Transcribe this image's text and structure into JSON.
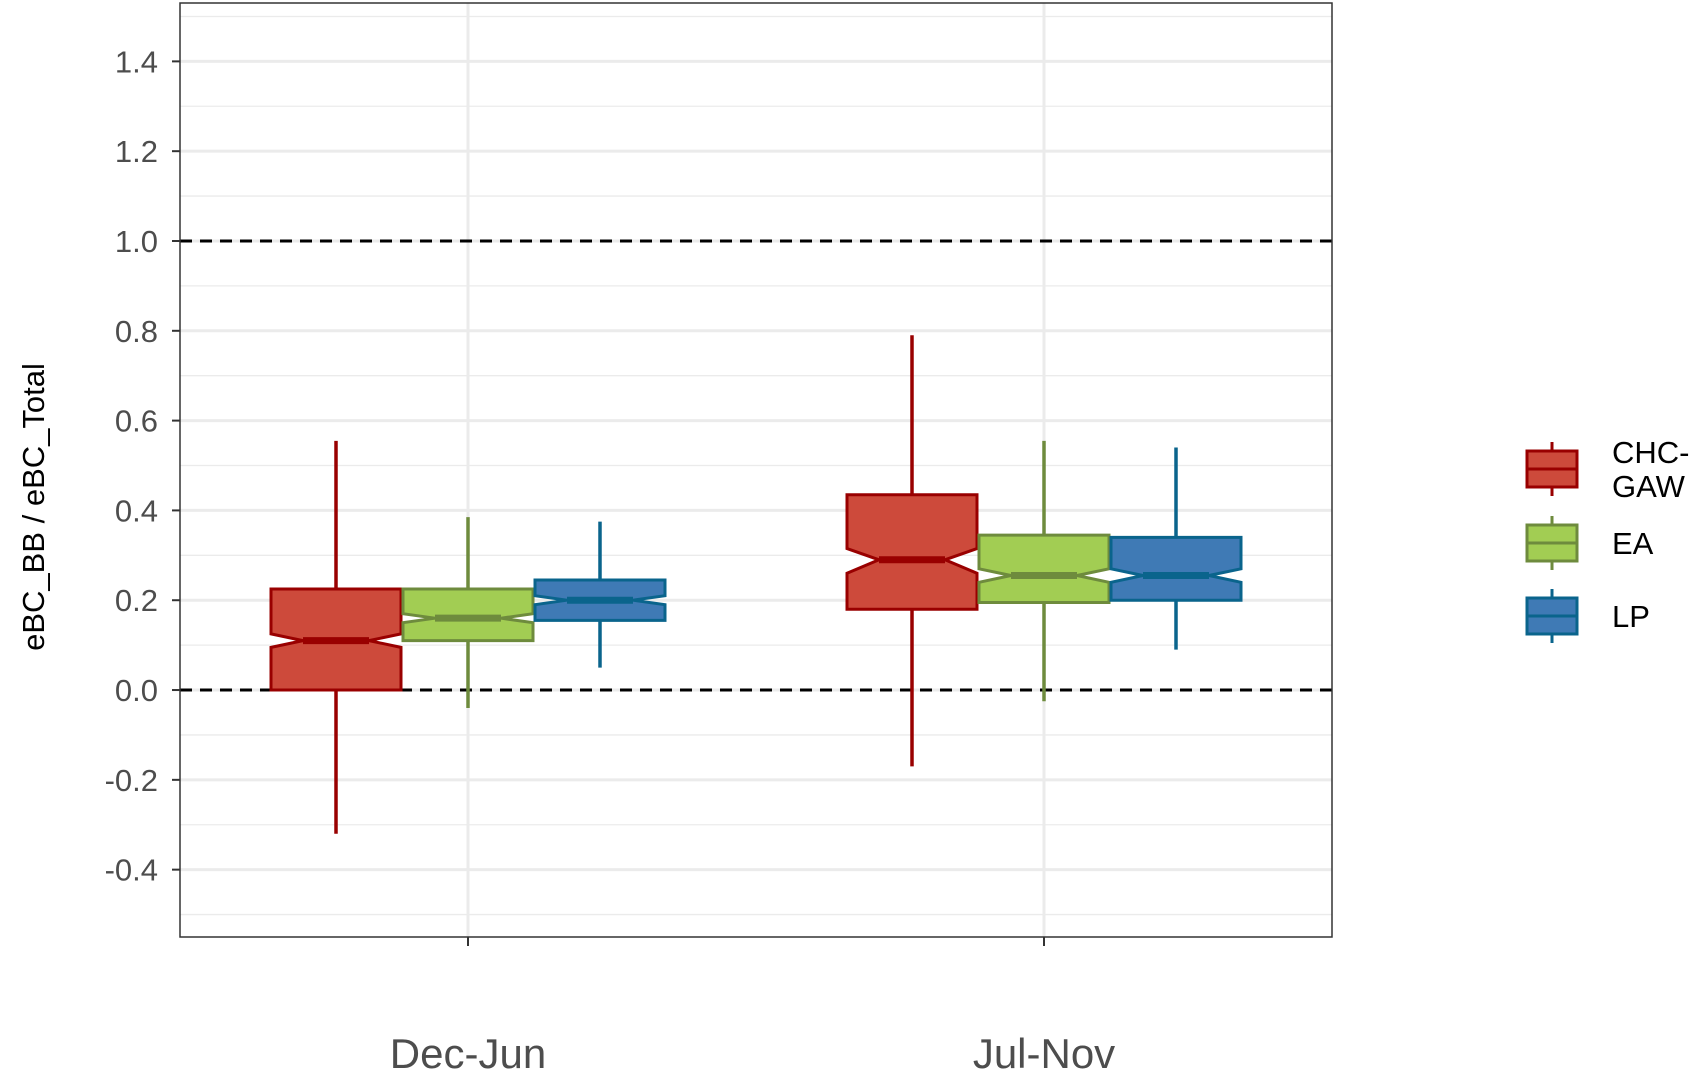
{
  "chart_data": {
    "type": "boxplot",
    "notched": true,
    "ylabel": "eBC_BB / eBC_Total",
    "xlabel": "",
    "ylim": [
      -0.55,
      1.53
    ],
    "y_ticks": [
      -0.4,
      -0.2,
      0.0,
      0.2,
      0.4,
      0.6,
      0.8,
      1.0,
      1.2,
      1.4
    ],
    "y_tick_labels": [
      "-0.4",
      "-0.2",
      "0.0",
      "0.2",
      "0.4",
      "0.6",
      "0.8",
      "1.0",
      "1.2",
      "1.4"
    ],
    "categories": [
      "Dec-Jun",
      "Jul-Nov"
    ],
    "reference_lines": [
      0.0,
      1.0
    ],
    "grid": true,
    "legend_position": "right",
    "series": [
      {
        "name": "CHC-GAW",
        "legend_lines": [
          "CHC-",
          "GAW"
        ],
        "fill": "#CD4A3B",
        "stroke": "#990000",
        "boxes": [
          {
            "whisker_low": -0.32,
            "q1": 0.0,
            "notch_low": 0.095,
            "median": 0.11,
            "notch_high": 0.125,
            "q3": 0.225,
            "whisker_high": 0.555
          },
          {
            "whisker_low": -0.17,
            "q1": 0.18,
            "notch_low": 0.26,
            "median": 0.29,
            "notch_high": 0.315,
            "q3": 0.435,
            "whisker_high": 0.79
          }
        ]
      },
      {
        "name": "EA",
        "legend_lines": [
          "EA"
        ],
        "fill": "#A2CD53",
        "stroke": "#6E8B3D",
        "boxes": [
          {
            "whisker_low": -0.04,
            "q1": 0.11,
            "notch_low": 0.15,
            "median": 0.16,
            "notch_high": 0.17,
            "q3": 0.225,
            "whisker_high": 0.385
          },
          {
            "whisker_low": -0.025,
            "q1": 0.195,
            "notch_low": 0.24,
            "median": 0.255,
            "notch_high": 0.27,
            "q3": 0.345,
            "whisker_high": 0.555
          }
        ]
      },
      {
        "name": "LP",
        "legend_lines": [
          "LP"
        ],
        "fill": "#3F7AB5",
        "stroke": "#0A648C",
        "boxes": [
          {
            "whisker_low": 0.05,
            "q1": 0.155,
            "notch_low": 0.19,
            "median": 0.2,
            "notch_high": 0.21,
            "q3": 0.245,
            "whisker_high": 0.375
          },
          {
            "whisker_low": 0.09,
            "q1": 0.2,
            "notch_low": 0.24,
            "median": 0.255,
            "notch_high": 0.27,
            "q3": 0.34,
            "whisker_high": 0.54
          }
        ]
      }
    ]
  }
}
